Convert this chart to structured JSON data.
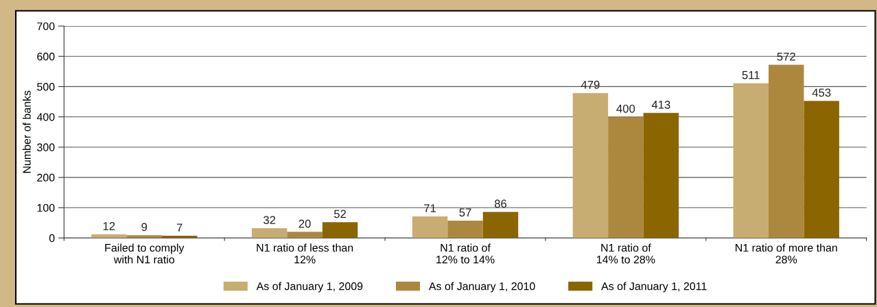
{
  "chart_data": {
    "type": "bar",
    "ylabel": "Number of banks",
    "categories": [
      "Failed to comply\nwith N1 ratio",
      "N1 ratio of less than\n12%",
      "N1 ratio of\n12% to 14%",
      "N1 ratio of\n14% to 28%",
      "N1 ratio of more than\n28%"
    ],
    "series": [
      {
        "name": "As of January 1, 2009",
        "color": "#c8ad72",
        "values": [
          12,
          32,
          71,
          479,
          511
        ]
      },
      {
        "name": "As of January 1, 2010",
        "color": "#ac883f",
        "values": [
          9,
          20,
          57,
          400,
          572
        ]
      },
      {
        "name": "As of January 1, 2011",
        "color": "#8a6500",
        "values": [
          7,
          52,
          86,
          413,
          453
        ]
      }
    ],
    "ylim": [
      0,
      700
    ],
    "yticks": [
      0,
      100,
      200,
      300,
      400,
      500,
      600,
      700
    ],
    "grid": "y",
    "legend": "bottom",
    "data_labels": true
  }
}
